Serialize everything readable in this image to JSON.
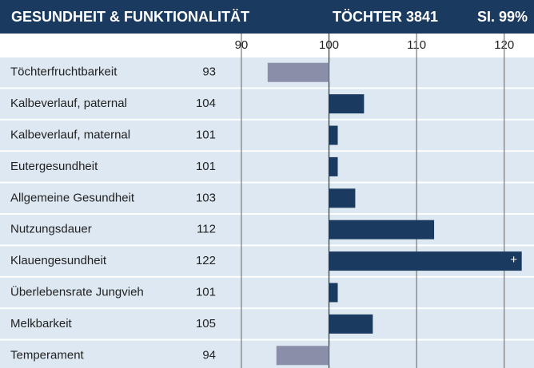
{
  "chart_data": {
    "type": "bar",
    "orientation": "horizontal",
    "title": "GESUNDHEIT & FUNKTIONALITÄT",
    "daughters": "TÖCHTER 3841",
    "reliability": "SI. 99%",
    "categories": [
      "Töchterfruchtbarkeit",
      "Kalbeverlauf, paternal",
      "Kalbeverlauf, maternal",
      "Eutergesundheit",
      "Allgemeine Gesundheit",
      "Nutzungsdauer",
      "Klauengesundheit",
      "Überlebensrate Jungvieh",
      "Melkbarkeit",
      "Temperament"
    ],
    "values": [
      93,
      104,
      101,
      101,
      103,
      112,
      122,
      101,
      105,
      94
    ],
    "baseline": 100,
    "color_above": "#1b3a5f",
    "color_below": "#8b8ea8",
    "xlim": [
      88,
      123.4
    ],
    "xticks": [
      90,
      100,
      110,
      120
    ],
    "grid": true,
    "annotations": [
      {
        "category": "Klauengesundheit",
        "text": "+"
      }
    ]
  }
}
